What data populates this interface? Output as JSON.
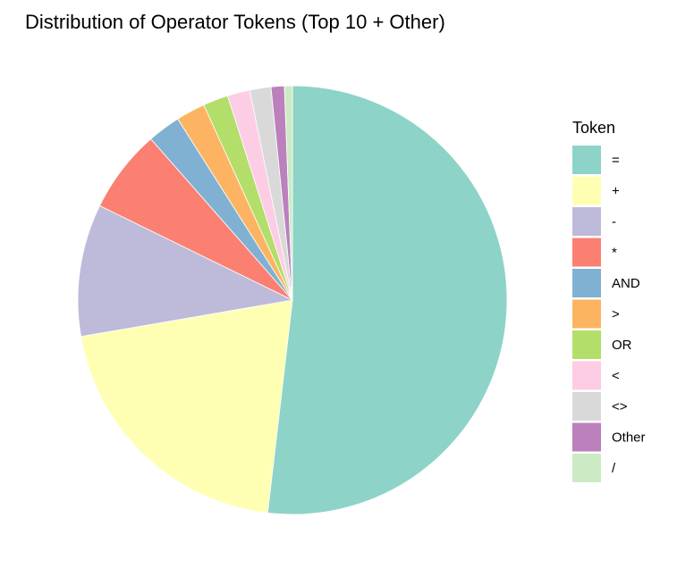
{
  "chart_data": {
    "type": "pie",
    "title": "Distribution of Operator Tokens (Top 10 + Other)",
    "legend": {
      "title": "Token",
      "position": "right"
    },
    "start": "top",
    "direction": "clockwise",
    "slices": [
      {
        "label": "=",
        "value": 52.0,
        "color": "#8DD3C7"
      },
      {
        "label": "+",
        "value": 20.5,
        "color": "#FFFFB3"
      },
      {
        "label": "-",
        "value": 10.0,
        "color": "#BEBADA"
      },
      {
        "label": "*",
        "value": 6.3,
        "color": "#FB8072"
      },
      {
        "label": "AND",
        "value": 2.5,
        "color": "#80B1D3"
      },
      {
        "label": ">",
        "value": 2.2,
        "color": "#FDB462"
      },
      {
        "label": "OR",
        "value": 1.9,
        "color": "#B3DE69"
      },
      {
        "label": "<",
        "value": 1.7,
        "color": "#FCCDE5"
      },
      {
        "label": "<>",
        "value": 1.6,
        "color": "#D9D9D9"
      },
      {
        "label": "Other",
        "value": 1.0,
        "color": "#BC80BD"
      },
      {
        "label": "/",
        "value": 0.6,
        "color": "#CCEBC5"
      }
    ]
  }
}
